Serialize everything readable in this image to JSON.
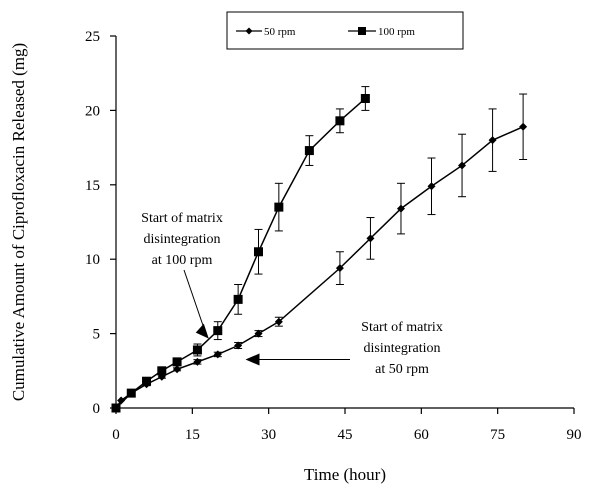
{
  "chart_data": {
    "type": "line",
    "title": "",
    "xlabel": "Time (hour)",
    "ylabel": "Cumulative Amount of Ciprofloxacin Released (mg)",
    "xlim": [
      0,
      90
    ],
    "ylim": [
      0,
      25
    ],
    "xticks": [
      0,
      15,
      30,
      45,
      60,
      75,
      90
    ],
    "yticks": [
      0,
      5,
      10,
      15,
      20,
      25
    ],
    "grid": false,
    "legend_position": "top",
    "series": [
      {
        "name": "50 rpm",
        "marker": "diamond",
        "color": "#000000",
        "x": [
          0,
          1,
          3,
          6,
          9,
          12,
          16,
          20,
          24,
          28,
          32,
          44,
          50,
          56,
          62,
          68,
          74,
          80
        ],
        "y": [
          0,
          0.5,
          1.0,
          1.6,
          2.1,
          2.6,
          3.1,
          3.6,
          4.2,
          5.0,
          5.8,
          9.4,
          11.4,
          13.4,
          14.9,
          16.3,
          18.0,
          18.9
        ],
        "err": [
          0,
          0,
          0.1,
          0.1,
          0.1,
          0.1,
          0.15,
          0.15,
          0.2,
          0.2,
          0.3,
          1.1,
          1.4,
          1.7,
          1.9,
          2.1,
          2.1,
          2.2
        ]
      },
      {
        "name": "100 rpm",
        "marker": "square",
        "color": "#000000",
        "x": [
          0,
          3,
          6,
          9,
          12,
          16,
          20,
          24,
          28,
          32,
          38,
          44,
          49
        ],
        "y": [
          0,
          1.0,
          1.8,
          2.5,
          3.1,
          3.9,
          5.2,
          7.3,
          10.5,
          13.5,
          17.3,
          19.3,
          20.8
        ],
        "err": [
          0,
          0.1,
          0.15,
          0.2,
          0.25,
          0.4,
          0.6,
          1.0,
          1.5,
          1.6,
          1.0,
          0.8,
          0.8
        ]
      }
    ],
    "annotations": [
      {
        "lines": [
          "Start of matrix",
          "disintegration",
          "at 100 rpm"
        ],
        "arrow_to": {
          "x": 20,
          "y": 5.0
        }
      },
      {
        "lines": [
          "Start of matrix",
          "disintegration",
          "at 50 rpm"
        ],
        "arrow_to": {
          "x": 28,
          "y": 4.2
        }
      }
    ]
  }
}
